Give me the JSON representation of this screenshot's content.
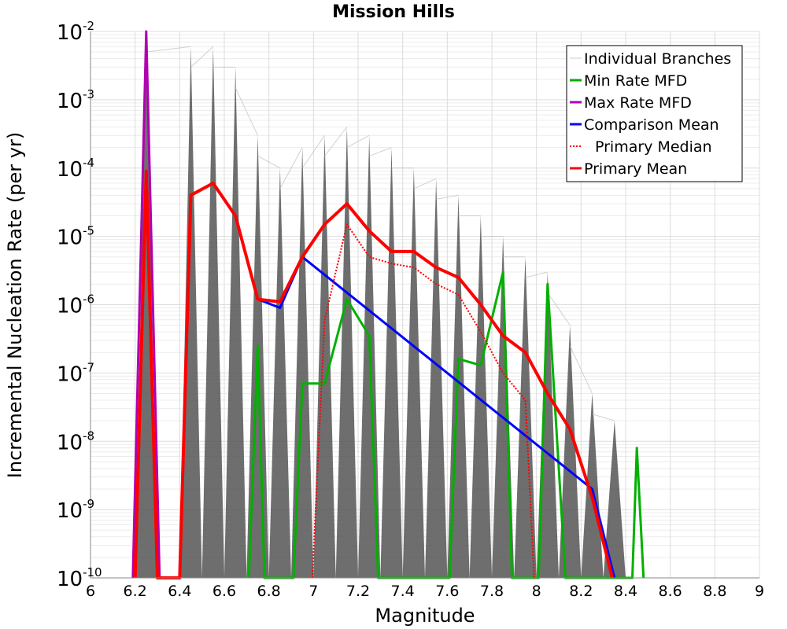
{
  "chart_data": {
    "type": "line",
    "title": "Mission Hills",
    "xlabel": "Magnitude",
    "ylabel": "Incremental Nucleation Rate (per yr)",
    "xlim": [
      6,
      9
    ],
    "ylim": [
      1e-10,
      0.01
    ],
    "y_scale": "log",
    "grid": true,
    "legend_position": "top-right",
    "x_ticks": [
      "6",
      "6.2",
      "6.4",
      "6.6",
      "6.8",
      "7",
      "7.2",
      "7.4",
      "7.6",
      "7.8",
      "8",
      "8.2",
      "8.4",
      "8.6",
      "8.8",
      "9"
    ],
    "y_ticks": [
      {
        "base": "10",
        "exp": "-2",
        "value": 0.01
      },
      {
        "base": "10",
        "exp": "-3",
        "value": 0.001
      },
      {
        "base": "10",
        "exp": "-4",
        "value": 0.0001
      },
      {
        "base": "10",
        "exp": "-5",
        "value": 1e-05
      },
      {
        "base": "10",
        "exp": "-6",
        "value": 1e-06
      },
      {
        "base": "10",
        "exp": "-7",
        "value": 1e-07
      },
      {
        "base": "10",
        "exp": "-8",
        "value": 1e-08
      },
      {
        "base": "10",
        "exp": "-9",
        "value": 1e-09
      },
      {
        "base": "10",
        "exp": "-10",
        "value": 1e-10
      }
    ],
    "individual_branch_peaks": [
      {
        "x": 6.25,
        "y": 0.01
      },
      {
        "x": 6.45,
        "y": 0.006
      },
      {
        "x": 6.55,
        "y": 0.006
      },
      {
        "x": 6.65,
        "y": 0.003
      },
      {
        "x": 6.75,
        "y": 0.0003
      },
      {
        "x": 6.85,
        "y": 0.0001
      },
      {
        "x": 6.95,
        "y": 0.0002
      },
      {
        "x": 7.05,
        "y": 0.0003
      },
      {
        "x": 7.15,
        "y": 0.0004
      },
      {
        "x": 7.25,
        "y": 0.0003
      },
      {
        "x": 7.35,
        "y": 0.0002
      },
      {
        "x": 7.45,
        "y": 0.0001
      },
      {
        "x": 7.55,
        "y": 7e-05
      },
      {
        "x": 7.65,
        "y": 4e-05
      },
      {
        "x": 7.75,
        "y": 2e-05
      },
      {
        "x": 7.85,
        "y": 1e-05
      },
      {
        "x": 7.95,
        "y": 5e-06
      },
      {
        "x": 8.05,
        "y": 3e-06
      },
      {
        "x": 8.15,
        "y": 5e-07
      },
      {
        "x": 8.25,
        "y": 5e-08
      },
      {
        "x": 8.35,
        "y": 2e-08
      }
    ],
    "series": [
      {
        "name": "Min Rate MFD",
        "color": "#00b000",
        "style": "solid",
        "points": [
          [
            6.71,
            1e-10
          ],
          [
            6.75,
            2.5e-07
          ],
          [
            6.78,
            1e-10
          ],
          [
            6.91,
            1e-10
          ],
          [
            6.95,
            7e-08
          ],
          [
            7.05,
            7e-08
          ],
          [
            7.15,
            1.2e-06
          ],
          [
            7.25,
            3.5e-07
          ],
          [
            7.29,
            1e-10
          ],
          [
            7.61,
            1e-10
          ],
          [
            7.65,
            1.6e-07
          ],
          [
            7.75,
            1.3e-07
          ],
          [
            7.85,
            3e-06
          ],
          [
            7.89,
            1e-10
          ],
          [
            8.01,
            1e-10
          ],
          [
            8.05,
            2e-06
          ],
          [
            8.13,
            1e-10
          ],
          [
            8.43,
            1e-10
          ],
          [
            8.45,
            8e-09
          ],
          [
            8.48,
            1e-10
          ]
        ]
      },
      {
        "name": "Max Rate MFD",
        "color": "#b000b0",
        "style": "solid",
        "points": [
          [
            6.19,
            1e-10
          ],
          [
            6.25,
            0.01
          ],
          [
            6.31,
            1e-10
          ]
        ]
      },
      {
        "name": "Comparison Mean",
        "color": "#0000ff",
        "style": "solid",
        "points": [
          [
            6.75,
            1.2e-06
          ],
          [
            6.85,
            9e-07
          ],
          [
            6.95,
            5e-06
          ],
          [
            8.25,
            2e-09
          ],
          [
            8.35,
            1e-10
          ]
        ]
      },
      {
        "name": "Primary Median",
        "color": "#ff0000",
        "style": "dotted",
        "points": [
          [
            6.995,
            1e-10
          ],
          [
            7.05,
            6e-07
          ],
          [
            7.15,
            1.5e-05
          ],
          [
            7.25,
            5e-06
          ],
          [
            7.35,
            4e-06
          ],
          [
            7.45,
            3.5e-06
          ],
          [
            7.55,
            2e-06
          ],
          [
            7.65,
            1.4e-06
          ],
          [
            7.75,
            4e-07
          ],
          [
            7.85,
            1e-07
          ],
          [
            7.95,
            4e-08
          ],
          [
            7.99,
            1e-10
          ]
        ]
      },
      {
        "name": "Primary Mean",
        "color": "#ff0000",
        "style": "solid",
        "points": [
          [
            6.2,
            1e-10
          ],
          [
            6.25,
            9e-05
          ],
          [
            6.3,
            1e-10
          ],
          [
            6.4,
            1e-10
          ],
          [
            6.45,
            4e-05
          ],
          [
            6.55,
            6e-05
          ],
          [
            6.65,
            2e-05
          ],
          [
            6.75,
            1.2e-06
          ],
          [
            6.85,
            1.1e-06
          ],
          [
            6.95,
            5e-06
          ],
          [
            7.05,
            1.5e-05
          ],
          [
            7.15,
            3e-05
          ],
          [
            7.25,
            1.2e-05
          ],
          [
            7.35,
            6e-06
          ],
          [
            7.45,
            6e-06
          ],
          [
            7.55,
            3.5e-06
          ],
          [
            7.65,
            2.5e-06
          ],
          [
            7.75,
            1e-06
          ],
          [
            7.85,
            3.5e-07
          ],
          [
            7.95,
            2e-07
          ],
          [
            8.05,
            5e-08
          ],
          [
            8.15,
            1.5e-08
          ],
          [
            8.25,
            1.5e-09
          ],
          [
            8.34,
            1e-10
          ]
        ]
      }
    ],
    "legend": [
      {
        "label": "Individual Branches",
        "color": "#cccccc",
        "style": "solid"
      },
      {
        "label": "Min Rate MFD",
        "color": "#00b000",
        "style": "solid"
      },
      {
        "label": "Max Rate MFD",
        "color": "#b000b0",
        "style": "solid"
      },
      {
        "label": "Comparison Mean",
        "color": "#0000ff",
        "style": "solid"
      },
      {
        "label": "Primary Median",
        "color": "#ff0000",
        "style": "dotted"
      },
      {
        "label": "Primary Mean",
        "color": "#ff0000",
        "style": "solid"
      }
    ]
  }
}
